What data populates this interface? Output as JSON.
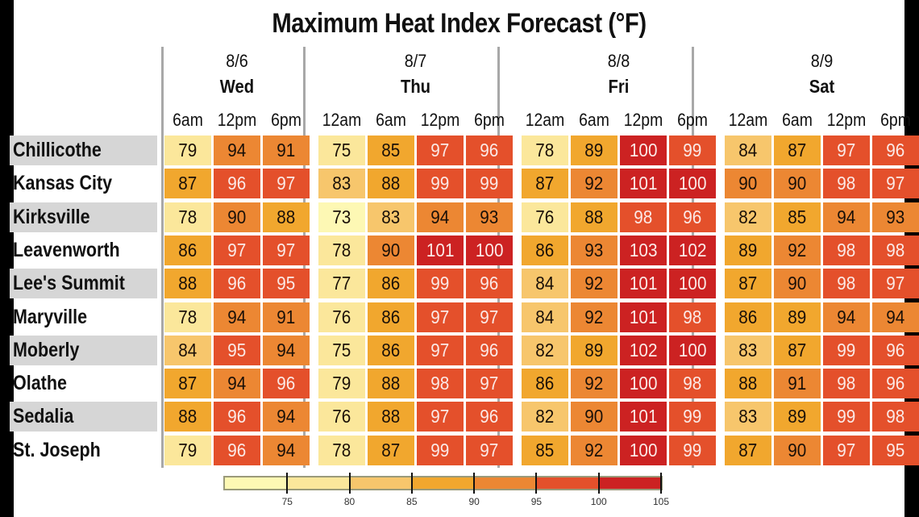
{
  "title": "Maximum Heat Index Forecast (°F)",
  "days": [
    {
      "date": "8/6",
      "name": "Wed",
      "times": [
        "6am",
        "12pm",
        "6pm"
      ]
    },
    {
      "date": "8/7",
      "name": "Thu",
      "times": [
        "12am",
        "6am",
        "12pm",
        "6pm"
      ]
    },
    {
      "date": "8/8",
      "name": "Fri",
      "times": [
        "12am",
        "6am",
        "12pm",
        "6pm"
      ]
    },
    {
      "date": "8/9",
      "name": "Sat",
      "times": [
        "12am",
        "6am",
        "12pm",
        "6pm"
      ]
    }
  ],
  "legend": {
    "ticks": [
      "75",
      "80",
      "85",
      "90",
      "95",
      "100",
      "105"
    ],
    "colors": [
      "#fdf8b4",
      "#fbe79b",
      "#f7c66c",
      "#f1a72e",
      "#ec8733",
      "#e4502b",
      "#cc2222"
    ]
  },
  "chart_data": {
    "type": "heatmap",
    "title": "Maximum Heat Index Forecast (°F)",
    "x": [
      "8/6 Wed 6am",
      "8/6 Wed 12pm",
      "8/6 Wed 6pm",
      "8/7 Thu 12am",
      "8/7 Thu 6am",
      "8/7 Thu 12pm",
      "8/7 Thu 6pm",
      "8/8 Fri 12am",
      "8/8 Fri 6am",
      "8/8 Fri 12pm",
      "8/8 Fri 6pm",
      "8/9 Sat 12am",
      "8/9 Sat 6am",
      "8/9 Sat 12pm",
      "8/9 Sat 6pm"
    ],
    "y": [
      "Chillicothe",
      "Kansas City",
      "Kirksville",
      "Leavenworth",
      "Lee's Summit",
      "Maryville",
      "Moberly",
      "Olathe",
      "Sedalia",
      "St. Joseph"
    ],
    "values": [
      [
        79,
        94,
        91,
        75,
        85,
        97,
        96,
        78,
        89,
        100,
        99,
        84,
        87,
        97,
        96
      ],
      [
        87,
        96,
        97,
        83,
        88,
        99,
        99,
        87,
        92,
        101,
        100,
        90,
        90,
        98,
        97
      ],
      [
        78,
        90,
        88,
        73,
        83,
        94,
        93,
        76,
        88,
        98,
        96,
        82,
        85,
        94,
        93
      ],
      [
        86,
        97,
        97,
        78,
        90,
        101,
        100,
        86,
        93,
        103,
        102,
        89,
        92,
        98,
        98
      ],
      [
        88,
        96,
        95,
        77,
        86,
        99,
        96,
        84,
        92,
        101,
        100,
        87,
        90,
        98,
        97
      ],
      [
        78,
        94,
        91,
        76,
        86,
        97,
        97,
        84,
        92,
        101,
        98,
        86,
        89,
        94,
        94
      ],
      [
        84,
        95,
        94,
        75,
        86,
        97,
        96,
        82,
        89,
        102,
        100,
        83,
        87,
        99,
        96
      ],
      [
        87,
        94,
        96,
        79,
        88,
        98,
        97,
        86,
        92,
        100,
        98,
        88,
        91,
        98,
        96
      ],
      [
        88,
        96,
        94,
        76,
        88,
        97,
        96,
        82,
        90,
        101,
        99,
        83,
        89,
        99,
        98
      ],
      [
        79,
        96,
        94,
        78,
        87,
        99,
        97,
        85,
        92,
        100,
        99,
        87,
        90,
        97,
        95
      ]
    ],
    "colorscale": {
      "bins": [
        70,
        75,
        80,
        85,
        90,
        95,
        100,
        105
      ],
      "colors": [
        "#fdf8b4",
        "#fbe79b",
        "#f7c66c",
        "#f1a72e",
        "#ec8733",
        "#e4502b",
        "#cc2222"
      ]
    },
    "legend_ticks": [
      75,
      80,
      85,
      90,
      95,
      100,
      105
    ],
    "xlabel": "",
    "ylabel": ""
  }
}
